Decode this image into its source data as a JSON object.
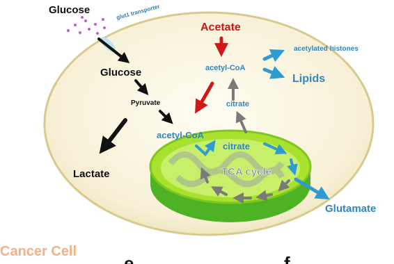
{
  "labels": {
    "glucose_outside": "Glucose",
    "transporter": "glut1 transporter",
    "glucose_inside": "Glucose",
    "pyruvate": "Pyruvate",
    "lactate": "Lactate",
    "acetate": "Acetate",
    "acetyl_coa_cytosol": "acetyl-CoA",
    "acetylated_histones": "acetylated histones",
    "lipids": "Lipids",
    "citrate_cytosol": "citrate",
    "acetyl_coa_mito": "acetyl-CoA",
    "citrate_mito": "citrate",
    "tca_cycle": "TCA cycle",
    "glutamate": "Glutamate",
    "cell_label": "Cancer Cell",
    "panel_e": "e",
    "panel_f": "f"
  }
}
